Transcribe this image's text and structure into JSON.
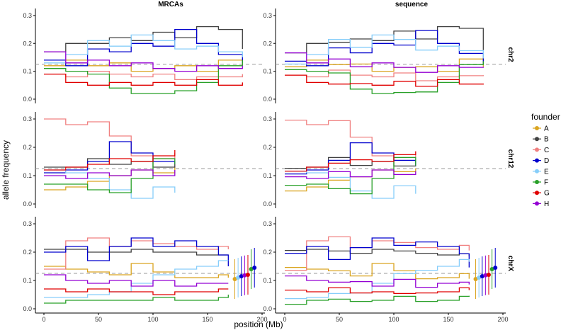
{
  "chart_data": {
    "type": "line",
    "xlabel": "position (Mb)",
    "ylabel": "allele frequency",
    "xlim": [
      0,
      200
    ],
    "ylim": [
      0,
      0.32
    ],
    "x_ticks": [
      0,
      50,
      100,
      150,
      200
    ],
    "y_ticks": [
      0.0,
      0.1,
      0.2,
      0.3
    ],
    "grid": false,
    "reference_line": 0.125,
    "facet_columns": [
      "MRCAs",
      "sequence"
    ],
    "facet_rows": [
      "chr2",
      "chr12",
      "chrX"
    ],
    "chromosome_length_mb": {
      "chr2": 182,
      "chr12": 120,
      "chrX": 169
    },
    "legend": {
      "title": "founder",
      "position": "right",
      "entries": [
        "A",
        "B",
        "C",
        "D",
        "E",
        "F",
        "G",
        "H"
      ]
    },
    "colors": {
      "A": "#DAA520",
      "B": "#404040",
      "C": "#F08080",
      "D": "#0000CD",
      "E": "#87CEFA",
      "F": "#28A028",
      "G": "#E00000",
      "H": "#9400D3"
    },
    "chrX_points": {
      "x": [
        175,
        178,
        181,
        184,
        187,
        190,
        193
      ],
      "y": [
        0.105,
        0.11,
        0.115,
        0.118,
        0.12,
        0.14,
        0.145
      ],
      "founders": [
        "A",
        "E",
        "D",
        "H",
        "G",
        "F",
        "D"
      ]
    },
    "series": {
      "chr2": {
        "A": [
          [
            0,
            0.12
          ],
          [
            20,
            0.14
          ],
          [
            40,
            0.12
          ],
          [
            60,
            0.13
          ],
          [
            80,
            0.1
          ],
          [
            100,
            0.11
          ],
          [
            120,
            0.12
          ],
          [
            140,
            0.1
          ],
          [
            160,
            0.14
          ],
          [
            182,
            0.12
          ]
        ],
        "B": [
          [
            0,
            0.17
          ],
          [
            20,
            0.2
          ],
          [
            40,
            0.2
          ],
          [
            60,
            0.22
          ],
          [
            80,
            0.21
          ],
          [
            100,
            0.24
          ],
          [
            120,
            0.22
          ],
          [
            140,
            0.26
          ],
          [
            160,
            0.25
          ],
          [
            182,
            0.18
          ]
        ],
        "C": [
          [
            0,
            0.09
          ],
          [
            20,
            0.08
          ],
          [
            40,
            0.1
          ],
          [
            60,
            0.09
          ],
          [
            80,
            0.08
          ],
          [
            100,
            0.09
          ],
          [
            120,
            0.07
          ],
          [
            140,
            0.08
          ],
          [
            160,
            0.08
          ],
          [
            182,
            0.09
          ]
        ],
        "D": [
          [
            0,
            0.14
          ],
          [
            20,
            0.12
          ],
          [
            40,
            0.18
          ],
          [
            60,
            0.17
          ],
          [
            80,
            0.2
          ],
          [
            100,
            0.19
          ],
          [
            120,
            0.25
          ],
          [
            140,
            0.2
          ],
          [
            160,
            0.16
          ],
          [
            182,
            0.13
          ]
        ],
        "E": [
          [
            0,
            0.13
          ],
          [
            20,
            0.16
          ],
          [
            40,
            0.21
          ],
          [
            60,
            0.19
          ],
          [
            80,
            0.23
          ],
          [
            100,
            0.21
          ],
          [
            120,
            0.18
          ],
          [
            140,
            0.19
          ],
          [
            160,
            0.17
          ],
          [
            182,
            0.15
          ]
        ],
        "F": [
          [
            0,
            0.11
          ],
          [
            20,
            0.1
          ],
          [
            40,
            0.09
          ],
          [
            60,
            0.04
          ],
          [
            80,
            0.02
          ],
          [
            100,
            0.02
          ],
          [
            120,
            0.03
          ],
          [
            140,
            0.06
          ],
          [
            160,
            0.12
          ],
          [
            182,
            0.14
          ]
        ],
        "G": [
          [
            0,
            0.09
          ],
          [
            20,
            0.06
          ],
          [
            40,
            0.05
          ],
          [
            60,
            0.06
          ],
          [
            80,
            0.05
          ],
          [
            100,
            0.06
          ],
          [
            120,
            0.05
          ],
          [
            140,
            0.07
          ],
          [
            160,
            0.05
          ],
          [
            182,
            0.06
          ]
        ],
        "H": [
          [
            0,
            0.17
          ],
          [
            20,
            0.13
          ],
          [
            40,
            0.14
          ],
          [
            60,
            0.12
          ],
          [
            80,
            0.13
          ],
          [
            100,
            0.11
          ],
          [
            120,
            0.1
          ],
          [
            140,
            0.12
          ],
          [
            160,
            0.11
          ],
          [
            182,
            0.12
          ]
        ]
      },
      "chr12": {
        "A": [
          [
            0,
            0.05
          ],
          [
            20,
            0.06
          ],
          [
            40,
            0.08
          ],
          [
            60,
            0.1
          ],
          [
            80,
            0.12
          ],
          [
            100,
            0.11
          ],
          [
            120,
            0.13
          ]
        ],
        "B": [
          [
            0,
            0.13
          ],
          [
            20,
            0.13
          ],
          [
            40,
            0.16
          ],
          [
            60,
            0.14
          ],
          [
            80,
            0.15
          ],
          [
            100,
            0.13
          ],
          [
            120,
            0.14
          ]
        ],
        "C": [
          [
            0,
            0.3
          ],
          [
            20,
            0.28
          ],
          [
            40,
            0.29
          ],
          [
            60,
            0.24
          ],
          [
            80,
            0.17
          ],
          [
            100,
            0.16
          ],
          [
            120,
            0.18
          ]
        ],
        "D": [
          [
            0,
            0.11
          ],
          [
            20,
            0.12
          ],
          [
            40,
            0.15
          ],
          [
            60,
            0.22
          ],
          [
            80,
            0.18
          ],
          [
            100,
            0.15
          ],
          [
            120,
            0.14
          ]
        ],
        "E": [
          [
            0,
            0.12
          ],
          [
            20,
            0.11
          ],
          [
            40,
            0.09
          ],
          [
            60,
            0.05
          ],
          [
            80,
            0.02
          ],
          [
            100,
            0.06
          ],
          [
            120,
            0.04
          ]
        ],
        "F": [
          [
            0,
            0.07
          ],
          [
            20,
            0.07
          ],
          [
            40,
            0.05
          ],
          [
            60,
            0.04
          ],
          [
            80,
            0.09
          ],
          [
            100,
            0.16
          ],
          [
            120,
            0.14
          ]
        ],
        "G": [
          [
            0,
            0.12
          ],
          [
            20,
            0.13
          ],
          [
            40,
            0.14
          ],
          [
            60,
            0.16
          ],
          [
            80,
            0.15
          ],
          [
            100,
            0.17
          ],
          [
            120,
            0.19
          ]
        ],
        "H": [
          [
            0,
            0.1
          ],
          [
            20,
            0.09
          ],
          [
            40,
            0.11
          ],
          [
            60,
            0.1
          ],
          [
            80,
            0.12
          ],
          [
            100,
            0.1
          ],
          [
            120,
            0.12
          ]
        ]
      },
      "chrX": {
        "A": [
          [
            0,
            0.15
          ],
          [
            20,
            0.14
          ],
          [
            40,
            0.13
          ],
          [
            60,
            0.12
          ],
          [
            80,
            0.16
          ],
          [
            100,
            0.13
          ],
          [
            120,
            0.11
          ],
          [
            140,
            0.11
          ],
          [
            160,
            0.12
          ],
          [
            169,
            0.11
          ]
        ],
        "B": [
          [
            0,
            0.21
          ],
          [
            20,
            0.21
          ],
          [
            40,
            0.2
          ],
          [
            60,
            0.2
          ],
          [
            80,
            0.21
          ],
          [
            100,
            0.2
          ],
          [
            120,
            0.2
          ],
          [
            140,
            0.19
          ],
          [
            160,
            0.19
          ],
          [
            169,
            0.19
          ]
        ],
        "C": [
          [
            0,
            0.14
          ],
          [
            20,
            0.24
          ],
          [
            40,
            0.25
          ],
          [
            60,
            0.22
          ],
          [
            80,
            0.24
          ],
          [
            100,
            0.23
          ],
          [
            120,
            0.22
          ],
          [
            140,
            0.21
          ],
          [
            160,
            0.22
          ],
          [
            169,
            0.21
          ]
        ],
        "D": [
          [
            0,
            0.2
          ],
          [
            20,
            0.22
          ],
          [
            40,
            0.17
          ],
          [
            60,
            0.22
          ],
          [
            80,
            0.25
          ],
          [
            100,
            0.22
          ],
          [
            120,
            0.24
          ],
          [
            140,
            0.22
          ],
          [
            160,
            0.19
          ],
          [
            169,
            0.15
          ]
        ],
        "E": [
          [
            0,
            0.04
          ],
          [
            20,
            0.04
          ],
          [
            40,
            0.05
          ],
          [
            60,
            0.06
          ],
          [
            80,
            0.09
          ],
          [
            100,
            0.12
          ],
          [
            120,
            0.14
          ],
          [
            140,
            0.15
          ],
          [
            160,
            0.17
          ],
          [
            169,
            0.17
          ]
        ],
        "F": [
          [
            0,
            0.02
          ],
          [
            20,
            0.03
          ],
          [
            40,
            0.03
          ],
          [
            60,
            0.03
          ],
          [
            80,
            0.03
          ],
          [
            100,
            0.04
          ],
          [
            120,
            0.03
          ],
          [
            140,
            0.03
          ],
          [
            160,
            0.04
          ],
          [
            169,
            0.05
          ]
        ],
        "G": [
          [
            0,
            0.07
          ],
          [
            20,
            0.06
          ],
          [
            40,
            0.07
          ],
          [
            60,
            0.06
          ],
          [
            80,
            0.06
          ],
          [
            100,
            0.05
          ],
          [
            120,
            0.06
          ],
          [
            140,
            0.06
          ],
          [
            160,
            0.07
          ],
          [
            169,
            0.07
          ]
        ],
        "H": [
          [
            0,
            0.12
          ],
          [
            20,
            0.1
          ],
          [
            40,
            0.09
          ],
          [
            60,
            0.1
          ],
          [
            80,
            0.08
          ],
          [
            100,
            0.1
          ],
          [
            120,
            0.08
          ],
          [
            140,
            0.09
          ],
          [
            160,
            0.09
          ],
          [
            169,
            0.09
          ]
        ]
      }
    }
  }
}
